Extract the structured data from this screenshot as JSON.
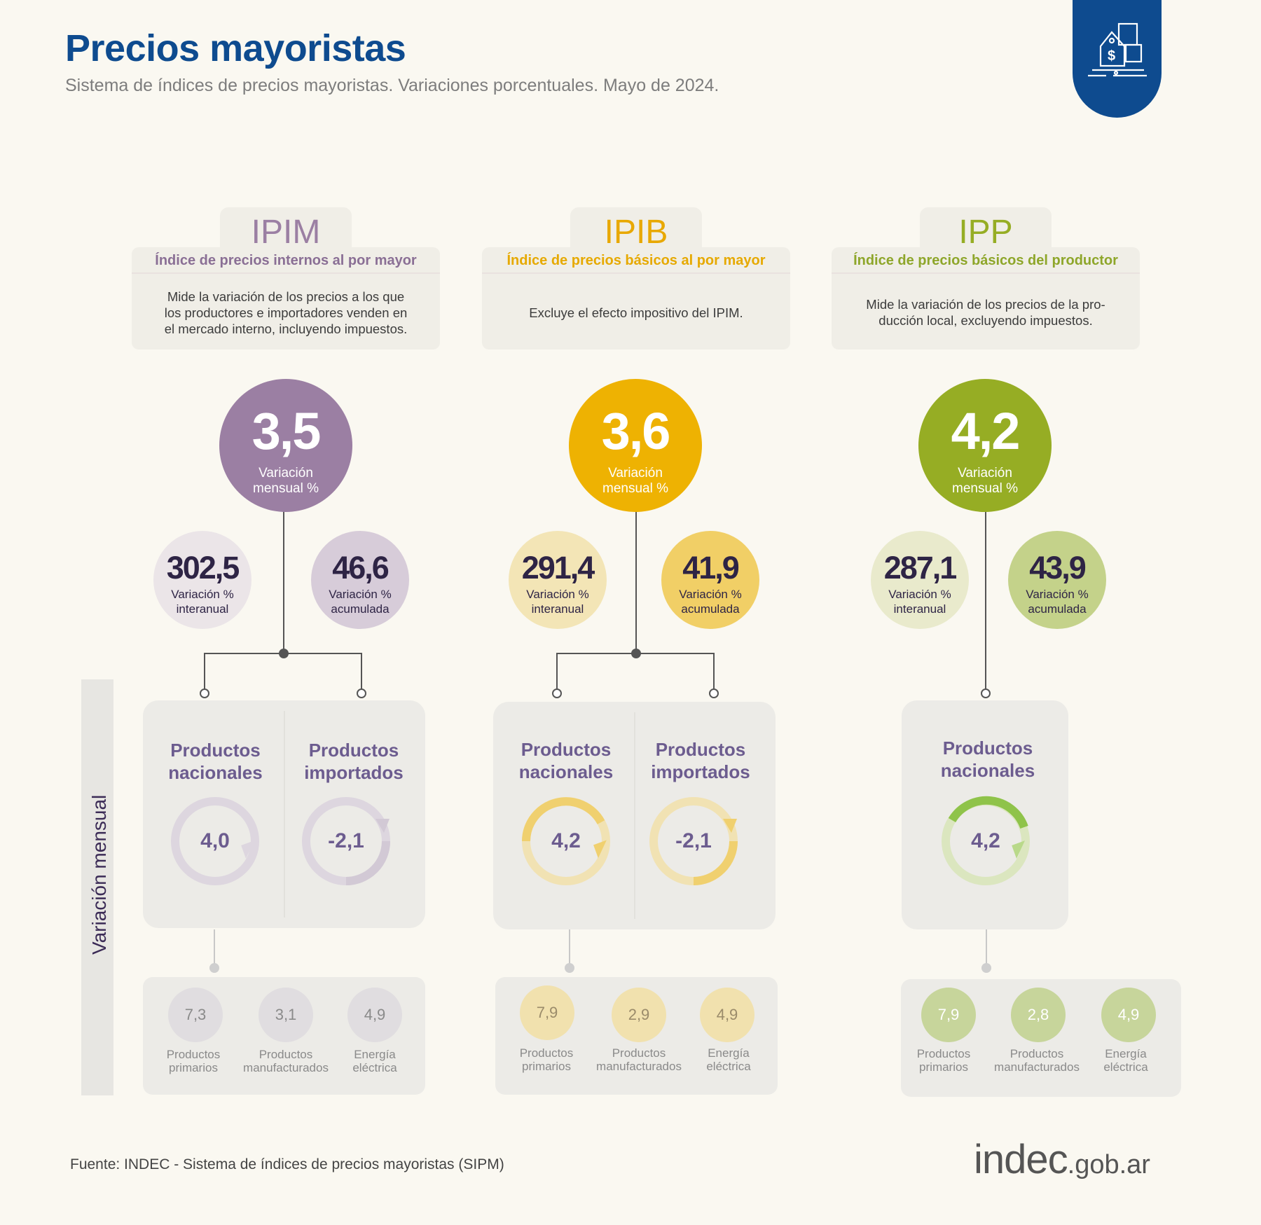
{
  "header": {
    "title": "Precios mayoristas",
    "subtitle": "Sistema de índices de precios mayoristas. Variaciones porcentuales. Mayo de 2024.",
    "badge_icon": "price-tag-boxes-icon"
  },
  "side_label": "Variación mensual",
  "colors": {
    "brand": "#0e4b8f",
    "ipim": "#9b7fa3",
    "ipib": "#eeb202",
    "ipp": "#96ad24"
  },
  "ipim": {
    "acronym": "IPIM",
    "name": "Índice de precios internos al por mayor",
    "description": "Mide la variación de los precios a los que\nlos productores e importadores venden en\nel mercado interno, incluyendo impuestos.",
    "monthly": {
      "value": "3,5",
      "label": "Variación\nmensual %"
    },
    "interanual": {
      "value": "302,5",
      "label": "Variación %\ninteranual"
    },
    "acumulada": {
      "value": "46,6",
      "label": "Variación %\nacumulada"
    },
    "nacionales": {
      "title": "Productos\nnacionales",
      "value": "4,0"
    },
    "importados": {
      "title": "Productos\nimportados",
      "value": "-2,1"
    },
    "sub": [
      {
        "value": "7,3",
        "label": "Productos\nprimarios"
      },
      {
        "value": "3,1",
        "label": "Productos\nmanufacturados"
      },
      {
        "value": "4,9",
        "label": "Energía\neléctrica"
      }
    ]
  },
  "ipib": {
    "acronym": "IPIB",
    "name": "Índice de precios básicos al por mayor",
    "description": "Excluye el efecto impositivo del IPIM.",
    "monthly": {
      "value": "3,6",
      "label": "Variación\nmensual %"
    },
    "interanual": {
      "value": "291,4",
      "label": "Variación %\ninteranual"
    },
    "acumulada": {
      "value": "41,9",
      "label": "Variación %\nacumulada"
    },
    "nacionales": {
      "title": "Productos\nnacionales",
      "value": "4,2"
    },
    "importados": {
      "title": "Productos\nimportados",
      "value": "-2,1"
    },
    "sub": [
      {
        "value": "7,9",
        "label": "Productos\nprimarios"
      },
      {
        "value": "2,9",
        "label": "Productos\nmanufacturados"
      },
      {
        "value": "4,9",
        "label": "Energía\neléctrica"
      }
    ]
  },
  "ipp": {
    "acronym": "IPP",
    "name": "Índice de precios básicos del productor",
    "description": "Mide la variación de los precios de la pro-\nducción local, excluyendo impuestos.",
    "monthly": {
      "value": "4,2",
      "label": "Variación\nmensual %"
    },
    "interanual": {
      "value": "287,1",
      "label": "Variación %\ninteranual"
    },
    "acumulada": {
      "value": "43,9",
      "label": "Variación %\nacumulada"
    },
    "nacionales": {
      "title": "Productos\nnacionales",
      "value": "4,2"
    },
    "sub": [
      {
        "value": "7,9",
        "label": "Productos\nprimarios"
      },
      {
        "value": "2,8",
        "label": "Productos\nmanufacturados"
      },
      {
        "value": "4,9",
        "label": "Energía\neléctrica"
      }
    ]
  },
  "footer": {
    "source": "Fuente: INDEC - Sistema de índices de precios mayoristas (SIPM)",
    "logo_main": "indec",
    "logo_domain": ".gob.ar"
  }
}
